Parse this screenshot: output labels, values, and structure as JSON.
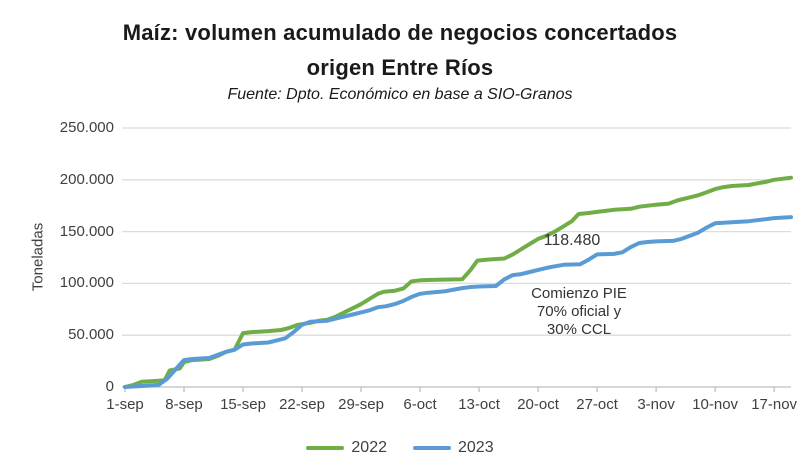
{
  "chart_data": {
    "type": "line",
    "title_line1": "Maíz: volumen acumulado de negocios concertados",
    "title_line2": "origen Entre Ríos",
    "subtitle": "Fuente: Dpto. Económico en base a SIO-Granos",
    "ylabel": "Toneladas",
    "ylim": [
      0,
      250000
    ],
    "grid": "horizontal",
    "legend_position": "bottom",
    "yticks": [
      {
        "value": 0,
        "label": "0"
      },
      {
        "value": 50000,
        "label": "50.000"
      },
      {
        "value": 100000,
        "label": "100.000"
      },
      {
        "value": 150000,
        "label": "150.000"
      },
      {
        "value": 200000,
        "label": "200.000"
      },
      {
        "value": 250000,
        "label": "250.000"
      }
    ],
    "xticks": [
      {
        "day": 0,
        "label": "1-sep"
      },
      {
        "day": 7,
        "label": "8-sep"
      },
      {
        "day": 14,
        "label": "15-sep"
      },
      {
        "day": 21,
        "label": "22-sep"
      },
      {
        "day": 28,
        "label": "29-sep"
      },
      {
        "day": 35,
        "label": "6-oct"
      },
      {
        "day": 42,
        "label": "13-oct"
      },
      {
        "day": 49,
        "label": "20-oct"
      },
      {
        "day": 56,
        "label": "27-oct"
      },
      {
        "day": 63,
        "label": "3-nov"
      },
      {
        "day": 70,
        "label": "10-nov"
      },
      {
        "day": 77,
        "label": "17-nov"
      }
    ],
    "x_domain_days": [
      0,
      79
    ],
    "series": [
      {
        "name": "2022",
        "color": "#70AD47",
        "points_day_tonnes": [
          [
            0,
            0
          ],
          [
            1,
            2000
          ],
          [
            2,
            5000
          ],
          [
            4,
            6000
          ],
          [
            4.7,
            6500
          ],
          [
            5.3,
            16000
          ],
          [
            6.5,
            18000
          ],
          [
            7,
            24000
          ],
          [
            8,
            26000
          ],
          [
            10,
            27000
          ],
          [
            11,
            30000
          ],
          [
            12,
            34000
          ],
          [
            13,
            36000
          ],
          [
            14,
            52000
          ],
          [
            15,
            53000
          ],
          [
            17,
            54000
          ],
          [
            18.5,
            55000
          ],
          [
            19.5,
            57000
          ],
          [
            20.5,
            60000
          ],
          [
            22,
            62000
          ],
          [
            23,
            64000
          ],
          [
            24,
            65000
          ],
          [
            25,
            68000
          ],
          [
            26,
            72000
          ],
          [
            27,
            76000
          ],
          [
            28,
            80000
          ],
          [
            29,
            85000
          ],
          [
            30,
            90000
          ],
          [
            30.7,
            92000
          ],
          [
            32,
            93000
          ],
          [
            33,
            95000
          ],
          [
            34,
            102000
          ],
          [
            35,
            103000
          ],
          [
            37,
            103500
          ],
          [
            40,
            104000
          ],
          [
            41,
            113000
          ],
          [
            41.8,
            122000
          ],
          [
            43,
            123000
          ],
          [
            45,
            124000
          ],
          [
            46,
            128000
          ],
          [
            47,
            133000
          ],
          [
            48,
            138000
          ],
          [
            49,
            143000
          ],
          [
            50,
            146000
          ],
          [
            51,
            150000
          ],
          [
            52,
            155000
          ],
          [
            53,
            160000
          ],
          [
            53.8,
            167000
          ],
          [
            55,
            168000
          ],
          [
            56,
            169000
          ],
          [
            57,
            170000
          ],
          [
            58,
            171000
          ],
          [
            60,
            172000
          ],
          [
            61,
            174000
          ],
          [
            62,
            175000
          ],
          [
            63,
            176000
          ],
          [
            64.5,
            177000
          ],
          [
            65.5,
            180000
          ],
          [
            66.5,
            182000
          ],
          [
            68,
            185000
          ],
          [
            69,
            188000
          ],
          [
            70,
            191000
          ],
          [
            71,
            193000
          ],
          [
            72,
            194000
          ],
          [
            74,
            195000
          ],
          [
            75,
            196500
          ],
          [
            76,
            198000
          ],
          [
            77,
            200000
          ],
          [
            79,
            202000
          ]
        ]
      },
      {
        "name": "2023",
        "color": "#5B9BD5",
        "points_day_tonnes": [
          [
            0,
            0
          ],
          [
            2,
            1000
          ],
          [
            4,
            2000
          ],
          [
            5,
            8000
          ],
          [
            6,
            17000
          ],
          [
            7,
            26000
          ],
          [
            8,
            27000
          ],
          [
            10,
            28000
          ],
          [
            11,
            31000
          ],
          [
            12,
            34000
          ],
          [
            13,
            36000
          ],
          [
            14,
            41000
          ],
          [
            15,
            42000
          ],
          [
            17,
            43000
          ],
          [
            18,
            45000
          ],
          [
            19,
            47000
          ],
          [
            20,
            53000
          ],
          [
            21,
            60000
          ],
          [
            22,
            63000
          ],
          [
            24,
            64000
          ],
          [
            25,
            66000
          ],
          [
            26,
            68000
          ],
          [
            27,
            70000
          ],
          [
            28,
            72000
          ],
          [
            29,
            74000
          ],
          [
            30,
            77000
          ],
          [
            31,
            78000
          ],
          [
            32,
            80000
          ],
          [
            33,
            83000
          ],
          [
            34,
            87000
          ],
          [
            35,
            90000
          ],
          [
            36,
            91000
          ],
          [
            38,
            92500
          ],
          [
            39,
            94000
          ],
          [
            40,
            95500
          ],
          [
            41,
            96500
          ],
          [
            42,
            97000
          ],
          [
            44,
            97500
          ],
          [
            45,
            104000
          ],
          [
            46,
            108000
          ],
          [
            47,
            109000
          ],
          [
            48,
            111000
          ],
          [
            49,
            113000
          ],
          [
            50,
            115000
          ],
          [
            51,
            116500
          ],
          [
            52,
            118000
          ],
          [
            54,
            118480
          ],
          [
            55,
            123000
          ],
          [
            56,
            128000
          ],
          [
            58,
            128500
          ],
          [
            59,
            130000
          ],
          [
            60,
            135000
          ],
          [
            61,
            139000
          ],
          [
            62,
            140000
          ],
          [
            63,
            140500
          ],
          [
            65,
            141000
          ],
          [
            66,
            143000
          ],
          [
            67,
            146000
          ],
          [
            68,
            149000
          ],
          [
            69,
            154000
          ],
          [
            70,
            158000
          ],
          [
            72,
            159000
          ],
          [
            74,
            160000
          ],
          [
            75,
            161000
          ],
          [
            76,
            162000
          ],
          [
            77,
            163000
          ],
          [
            79,
            164000
          ]
        ]
      }
    ],
    "annotations": [
      {
        "text": "118.480"
      },
      {
        "lines": [
          "Comienzo PIE",
          "70% oficial y",
          "30% CCL"
        ]
      }
    ],
    "colors": {
      "gridline": "#DCDCDC",
      "axis_line": "#BFBFBF",
      "axis_text": "#404040",
      "title_text": "#1A1A1A"
    }
  }
}
